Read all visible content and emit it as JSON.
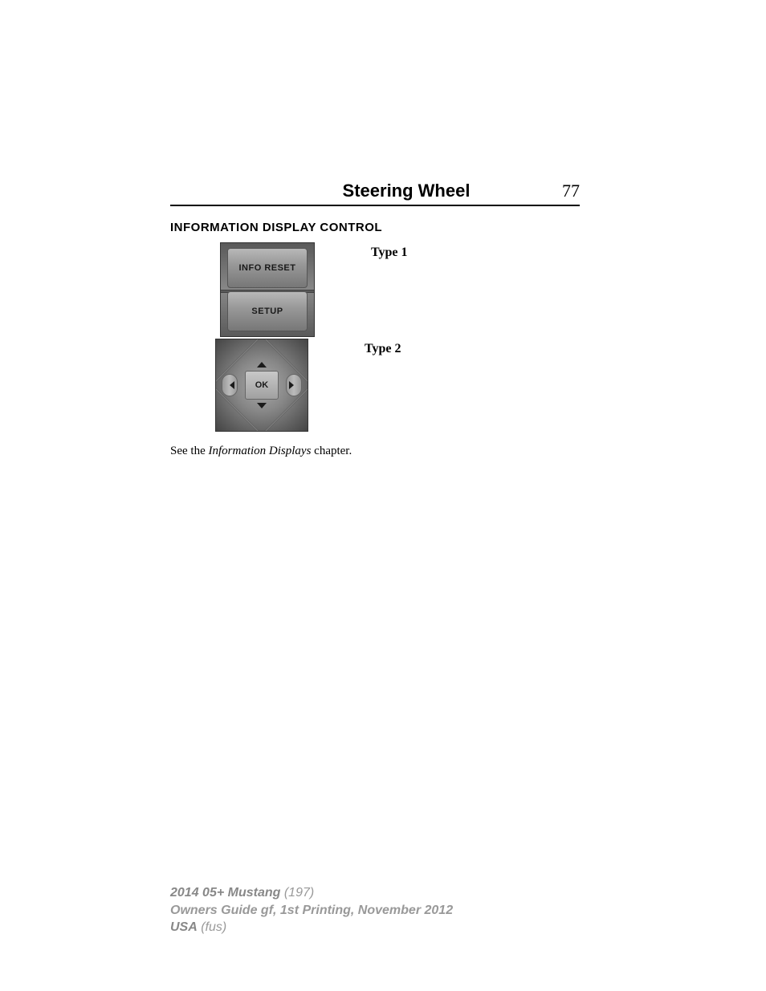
{
  "header": {
    "title": "Steering Wheel",
    "page_number": "77"
  },
  "section": {
    "heading": "INFORMATION DISPLAY CONTROL",
    "type1_label": "Type 1",
    "type2_label": "Type 2",
    "body_text_prefix": "See the ",
    "body_text_italic": "Information Displays",
    "body_text_suffix": " chapter."
  },
  "control1": {
    "button_top": "INFO RESET",
    "button_bottom": "SETUP"
  },
  "control2": {
    "center_button": "OK"
  },
  "footer": {
    "line1_bold": "2014 05+ Mustang",
    "line1_light": " (197)",
    "line2": "Owners Guide gf, 1st Printing, November 2012",
    "line3_bold": "USA",
    "line3_light": " (fus)"
  },
  "colors": {
    "text": "#000000",
    "footer_text": "#999999",
    "button_face_light": "#b8b8b8",
    "button_face_dark": "#777777",
    "control_bg_dark": "#5a5a5a",
    "control_bg_light": "#888888"
  }
}
